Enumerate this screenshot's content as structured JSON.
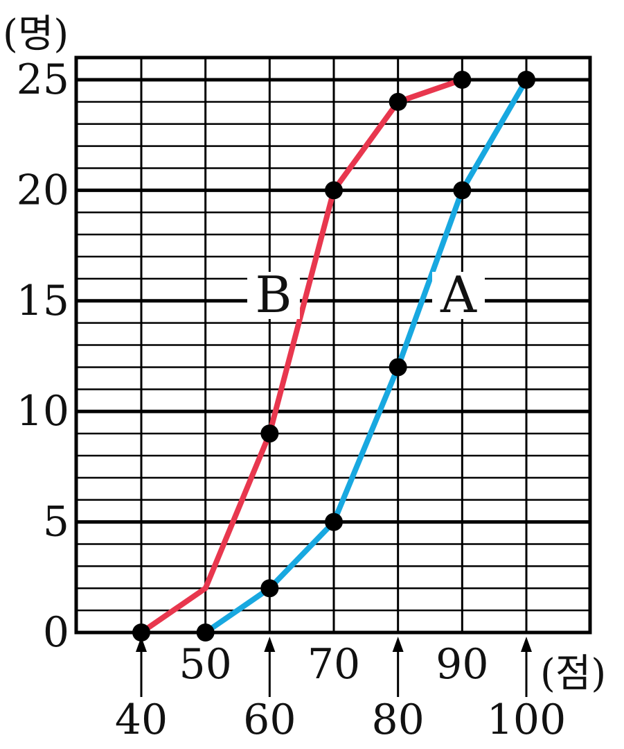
{
  "chart_data": {
    "type": "line",
    "title": "",
    "xlabel": "(점)",
    "ylabel": "(명)",
    "xlim": [
      35,
      105
    ],
    "ylim": [
      0,
      25
    ],
    "y_major_ticks": [
      0,
      5,
      10,
      15,
      20,
      25
    ],
    "y_minor_step": 1,
    "x_ticks_top_row": [
      "50",
      "70",
      "90"
    ],
    "x_ticks_bottom_row": [
      "40",
      "60",
      "80",
      "100"
    ],
    "grid": true,
    "colors": {
      "A": "#18a8e0",
      "B": "#e8374e",
      "grid": "#000000",
      "point": "#000000"
    },
    "series": [
      {
        "name": "A",
        "x": [
          50,
          60,
          70,
          80,
          90,
          100
        ],
        "y": [
          0,
          2,
          5,
          12,
          20,
          25
        ]
      },
      {
        "name": "B",
        "x": [
          40,
          50,
          60,
          70,
          80,
          90
        ],
        "y": [
          0,
          2,
          9,
          20,
          24,
          25
        ]
      }
    ],
    "markers": {
      "A": [
        [
          50,
          0
        ],
        [
          60,
          2
        ],
        [
          70,
          5
        ],
        [
          80,
          12
        ],
        [
          90,
          20
        ],
        [
          100,
          25
        ]
      ],
      "B": [
        [
          40,
          0
        ],
        [
          60,
          9
        ],
        [
          70,
          20
        ],
        [
          80,
          24
        ],
        [
          90,
          25
        ]
      ]
    }
  }
}
